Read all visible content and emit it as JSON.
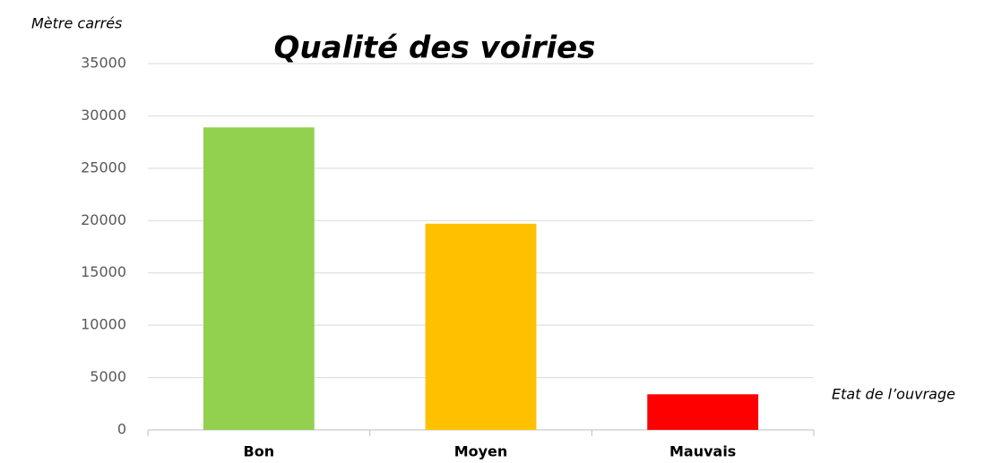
{
  "chart_data": {
    "type": "bar",
    "title": "Qualité des voiries",
    "y_label": "Mètre carrés",
    "x_label": "Etat de l’ouvrage",
    "categories": [
      "Bon",
      "Moyen",
      "Mauvais"
    ],
    "values": [
      28900,
      19700,
      3400
    ],
    "colors": [
      "#92d050",
      "#ffc000",
      "#ff0000"
    ],
    "ylim": [
      0,
      35000
    ],
    "yticks": [
      0,
      5000,
      10000,
      15000,
      20000,
      25000,
      30000,
      35000
    ],
    "grid": true
  }
}
